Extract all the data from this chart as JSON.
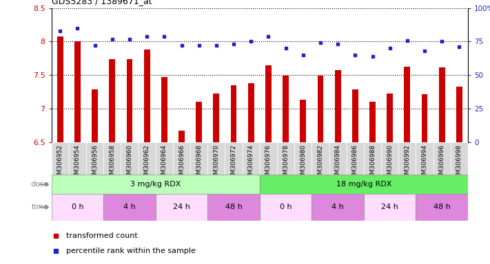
{
  "title": "GDS5283 / 1389671_at",
  "samples": [
    "GSM306952",
    "GSM306954",
    "GSM306956",
    "GSM306958",
    "GSM306960",
    "GSM306962",
    "GSM306964",
    "GSM306966",
    "GSM306968",
    "GSM306970",
    "GSM306972",
    "GSM306974",
    "GSM306976",
    "GSM306978",
    "GSM306980",
    "GSM306982",
    "GSM306984",
    "GSM306986",
    "GSM306988",
    "GSM306990",
    "GSM306992",
    "GSM306994",
    "GSM306996",
    "GSM306998"
  ],
  "bar_values": [
    8.08,
    8.01,
    7.29,
    7.74,
    7.74,
    7.88,
    7.47,
    6.68,
    7.11,
    7.23,
    7.35,
    7.38,
    7.65,
    7.49,
    7.14,
    7.49,
    7.58,
    7.29,
    7.11,
    7.23,
    7.63,
    7.22,
    7.62,
    7.33
  ],
  "percentile_values": [
    83,
    85,
    72,
    77,
    77,
    79,
    79,
    72,
    72,
    72,
    73,
    75,
    79,
    70,
    65,
    74,
    73,
    65,
    64,
    70,
    76,
    68,
    75,
    71
  ],
  "ylim": [
    6.5,
    8.5
  ],
  "bar_color": "#cc0000",
  "dot_color": "#2222cc",
  "dose_label_color": "#888888",
  "time_label_color": "#888888",
  "dose1_color": "#bbffbb",
  "dose2_color": "#66ee66",
  "time_white": "#ffddff",
  "time_pink": "#dd88dd",
  "xtick_bg": "#d8d8d8",
  "legend_items": [
    "transformed count",
    "percentile rank within the sample"
  ],
  "dose_labels": [
    "3 mg/kg RDX",
    "18 mg/kg RDX"
  ],
  "time_labels": [
    "0 h",
    "4 h",
    "24 h",
    "48 h",
    "0 h",
    "4 h",
    "24 h",
    "48 h"
  ],
  "time_widths": [
    3,
    3,
    3,
    3,
    3,
    3,
    3,
    3
  ]
}
